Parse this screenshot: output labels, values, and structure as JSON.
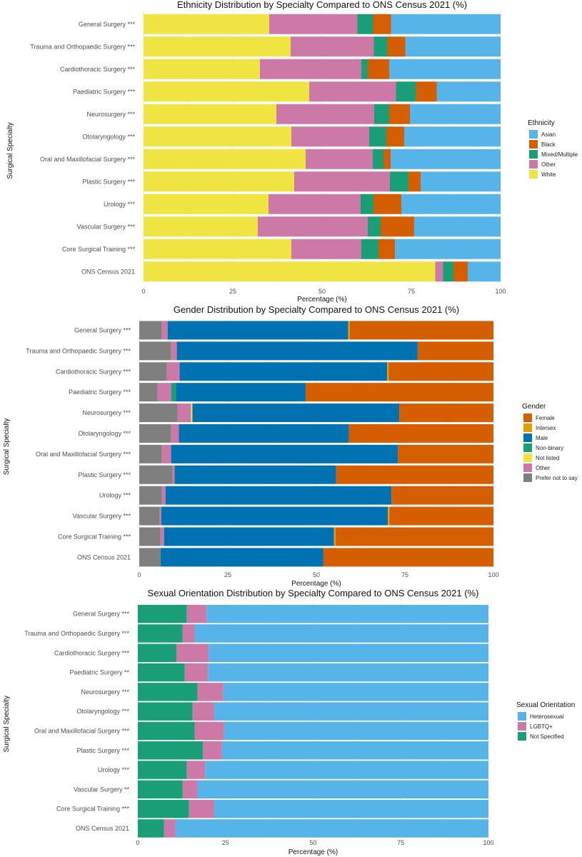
{
  "chart_data": [
    {
      "type": "bar",
      "stacked": true,
      "orientation": "horizontal",
      "title": "Ethnicity Distribution by Specialty Compared to ONS Census 2021 (%)",
      "xlabel": "Percentage (%)",
      "ylabel": "Surgical Specialty",
      "xlim": [
        0,
        100
      ],
      "xticks": [
        "0",
        "25",
        "50",
        "75",
        "100"
      ],
      "grid": true,
      "legend_position": "right",
      "legend_title": "Ethnicity",
      "legend_items": [
        {
          "label": "Asian",
          "color": "#56B4E9"
        },
        {
          "label": "Black",
          "color": "#D55E00"
        },
        {
          "label": "Mixed/Multiple",
          "color": "#1A9E77"
        },
        {
          "label": "Other",
          "color": "#CC79A7"
        },
        {
          "label": "White",
          "color": "#F0E442"
        }
      ],
      "categories": [
        "General Surgery",
        "Trauma and Orthopaedic Surgery",
        "Cardiothoracic Surgery",
        "Paediatric Surgery",
        "Neurosurgery",
        "Otolaryngology",
        "Oral and Maxillofacial Surgery",
        "Plastic Surgery",
        "Urology",
        "Vascular Surgery",
        "Core Surgical Training",
        "ONS Census 2021"
      ],
      "significance": [
        "***",
        "***",
        "***",
        "***",
        "***",
        "***",
        "***",
        "***",
        "***",
        "***",
        "***",
        ""
      ],
      "series": [
        {
          "name": "White",
          "color": "#F0E442",
          "values": [
            35.2,
            41.2,
            32.6,
            46.4,
            37.2,
            41.4,
            45.4,
            42.2,
            35.0,
            32.0,
            41.4,
            81.7
          ]
        },
        {
          "name": "Other",
          "color": "#CC79A7",
          "values": [
            24.7,
            23.3,
            28.4,
            24.3,
            27.4,
            21.8,
            18.8,
            26.8,
            25.8,
            30.8,
            19.6,
            2.2
          ]
        },
        {
          "name": "Mixed/Multiple",
          "color": "#1A9E77",
          "values": [
            4.4,
            3.8,
            1.8,
            5.6,
            4.2,
            4.8,
            3.0,
            5.2,
            3.6,
            3.6,
            4.8,
            2.9
          ]
        },
        {
          "name": "Black",
          "color": "#D55E00",
          "values": [
            5.0,
            5.0,
            6.0,
            5.8,
            5.8,
            5.0,
            2.0,
            3.4,
            7.8,
            9.4,
            4.6,
            4.0
          ]
        },
        {
          "name": "Asian",
          "color": "#56B4E9",
          "values": [
            30.7,
            26.7,
            31.2,
            17.9,
            25.4,
            27.0,
            30.8,
            22.4,
            27.8,
            24.2,
            29.6,
            9.2
          ]
        }
      ]
    },
    {
      "type": "bar",
      "stacked": true,
      "orientation": "horizontal",
      "title": "Gender Distribution by Specialty Compared to ONS Census 2021 (%)",
      "xlabel": "Percentage (%)",
      "ylabel": "Surgical Specialty",
      "xlim": [
        0,
        100
      ],
      "xticks": [
        "0",
        "25",
        "50",
        "75",
        "100"
      ],
      "grid": true,
      "legend_position": "right",
      "legend_title": "Gender",
      "legend_items": [
        {
          "label": "Female",
          "color": "#D55E00"
        },
        {
          "label": "Intersex",
          "color": "#E69F00"
        },
        {
          "label": "Male",
          "color": "#0072B2"
        },
        {
          "label": "Non-binary",
          "color": "#1A9E77"
        },
        {
          "label": "Not listed",
          "color": "#F0E442"
        },
        {
          "label": "Other",
          "color": "#CC79A7"
        },
        {
          "label": "Prefer not to say",
          "color": "#7F7F7F"
        }
      ],
      "categories": [
        "General Surgery",
        "Trauma and Orthopaedic Surgery",
        "Cardiothoracic Surgery",
        "Paediatric Surgery",
        "Neurosurgery",
        "Otolaryngology",
        "Oral and Maxillofacial Surgery",
        "Plastic Surgery",
        "Urology",
        "Vascular Surgery",
        "Core Surgical Training",
        "ONS Census 2021"
      ],
      "significance": [
        "***",
        "***",
        "***",
        "***",
        "***",
        "***",
        "***",
        "***",
        "***",
        "***",
        "***",
        ""
      ],
      "series": [
        {
          "name": "Prefer not to say",
          "color": "#7F7F7F",
          "values": [
            6.4,
            9.0,
            7.8,
            5.2,
            10.8,
            9.0,
            6.4,
            9.4,
            6.4,
            5.8,
            6.0,
            6.0
          ]
        },
        {
          "name": "Other",
          "color": "#CC79A7",
          "values": [
            1.6,
            1.6,
            3.6,
            3.8,
            3.8,
            2.2,
            2.6,
            0.6,
            1.0,
            0.4,
            1.0,
            0.0
          ]
        },
        {
          "name": "Non-binary",
          "color": "#1A9E77",
          "values": [
            0.0,
            0.0,
            0.0,
            1.4,
            0.0,
            0.0,
            0.0,
            0.0,
            0.0,
            0.0,
            0.0,
            0.0
          ]
        },
        {
          "name": "Not listed",
          "color": "#F0E442",
          "values": [
            0.0,
            0.0,
            0.0,
            0.0,
            0.4,
            0.0,
            0.0,
            0.0,
            0.0,
            0.0,
            0.0,
            0.0
          ]
        },
        {
          "name": "Male",
          "color": "#0072B2",
          "values": [
            51.0,
            68.0,
            58.6,
            36.6,
            58.4,
            48.0,
            64.0,
            45.6,
            63.8,
            64.0,
            48.0,
            46.0
          ]
        },
        {
          "name": "Intersex",
          "color": "#E69F00",
          "values": [
            0.4,
            0.0,
            0.4,
            0.0,
            0.0,
            0.0,
            0.0,
            0.0,
            0.0,
            0.4,
            0.4,
            0.0
          ]
        },
        {
          "name": "Female",
          "color": "#D55E00",
          "values": [
            40.6,
            21.4,
            29.6,
            53.0,
            26.6,
            40.8,
            27.0,
            44.4,
            28.8,
            29.4,
            44.6,
            48.0
          ]
        }
      ]
    },
    {
      "type": "bar",
      "stacked": true,
      "orientation": "horizontal",
      "title": "Sexual Orientation Distribution by Specialty Compared to ONS Census 2021 (%)",
      "xlabel": "Percentage (%)",
      "ylabel": "Surgical Specialty",
      "xlim": [
        0,
        100
      ],
      "xticks": [
        "0",
        "25",
        "50",
        "75",
        "100"
      ],
      "grid": true,
      "legend_position": "right",
      "legend_title": "Sexual Orientation",
      "legend_items": [
        {
          "label": "Heterosexual",
          "color": "#56B4E9"
        },
        {
          "label": "LGBTQ+",
          "color": "#CC79A7"
        },
        {
          "label": "Not Specified",
          "color": "#1A9E77"
        }
      ],
      "categories": [
        "General Surgery",
        "Trauma and Orthopaedic Surgery",
        "Cardiothoracic Surgery",
        "Paediatric Surgery",
        "Neurosurgery",
        "Otolaryngology",
        "Oral and Maxillofacial Surgery",
        "Plastic Surgery",
        "Urology",
        "Vascular Surgery",
        "Core Surgical Training",
        "ONS Census 2021"
      ],
      "significance": [
        "***",
        "***",
        "***",
        "**",
        "***",
        "***",
        "***",
        "***",
        "***",
        "**",
        "***",
        ""
      ],
      "series": [
        {
          "name": "Not Specified",
          "color": "#1A9E77",
          "values": [
            14.0,
            12.8,
            11.0,
            13.4,
            17.0,
            15.6,
            16.2,
            18.6,
            14.0,
            12.8,
            14.6,
            7.5
          ]
        },
        {
          "name": "LGBTQ+",
          "color": "#CC79A7",
          "values": [
            5.6,
            3.4,
            9.2,
            6.6,
            7.4,
            6.2,
            8.4,
            5.4,
            5.2,
            4.2,
            7.2,
            3.2
          ]
        },
        {
          "name": "Heterosexual",
          "color": "#56B4E9",
          "values": [
            80.4,
            83.8,
            79.8,
            80.0,
            75.6,
            78.2,
            75.4,
            76.0,
            80.8,
            83.0,
            78.2,
            89.3
          ]
        }
      ]
    }
  ]
}
